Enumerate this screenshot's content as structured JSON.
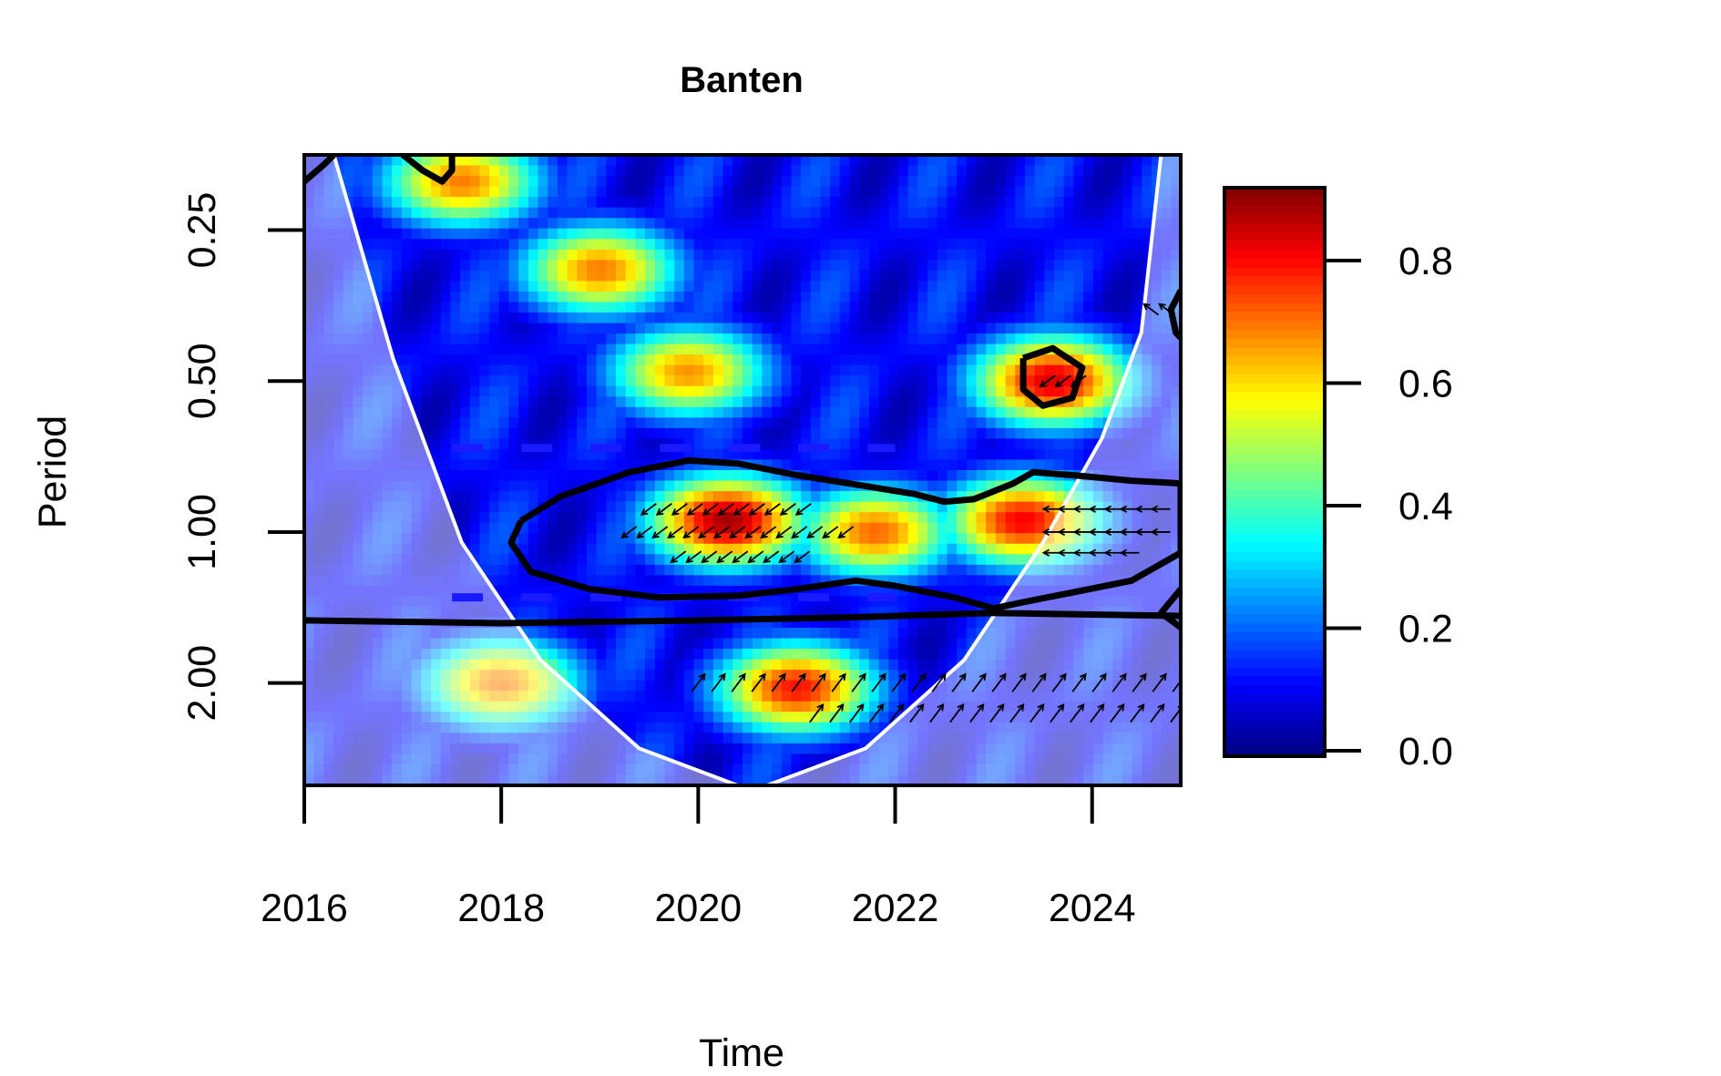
{
  "chart_data": {
    "type": "heatmap",
    "title": "Banten",
    "xlabel": "Time",
    "ylabel": "Period",
    "x_ticks": [
      "2016",
      "2018",
      "2020",
      "2022",
      "2024"
    ],
    "x_tick_values": [
      2016,
      2018,
      2020,
      2022,
      2024
    ],
    "xlim": [
      2016,
      2024.9
    ],
    "y_ticks": [
      "0.25",
      "0.50",
      "1.00",
      "2.00"
    ],
    "y_tick_values": [
      0.25,
      0.5,
      1.0,
      2.0
    ],
    "y_scale": "log2",
    "y_reversed": true,
    "ylim": [
      0.177,
      3.2
    ],
    "colorbar": {
      "ticks": [
        "0.0",
        "0.2",
        "0.4",
        "0.6",
        "0.8"
      ],
      "tick_values": [
        0.0,
        0.2,
        0.4,
        0.6,
        0.8
      ],
      "range": [
        0,
        0.93
      ],
      "palette": [
        "#00007F",
        "#0000FF",
        "#007FFF",
        "#00FFFF",
        "#7FFF7F",
        "#FFFF00",
        "#FF7F00",
        "#FF0000",
        "#7F0000"
      ]
    },
    "cone_of_influence": {
      "color": "#ffffff",
      "points": [
        [
          2016.3,
          0.177
        ],
        [
          2016.9,
          0.45
        ],
        [
          2017.6,
          1.05
        ],
        [
          2018.4,
          1.8
        ],
        [
          2019.4,
          2.7
        ],
        [
          2020.4,
          3.2
        ],
        [
          2020.7,
          3.2
        ],
        [
          2021.7,
          2.7
        ],
        [
          2022.7,
          1.8
        ],
        [
          2023.5,
          1.05
        ],
        [
          2024.1,
          0.65
        ],
        [
          2024.5,
          0.4
        ],
        [
          2024.7,
          0.177
        ]
      ]
    },
    "period_band_lines": {
      "color": "#1a1aff",
      "style": "dashed",
      "periods": [
        0.68,
        1.35
      ],
      "x_range": [
        2017.5,
        2022.0
      ]
    },
    "significance_contours": [
      {
        "label": "main-1yr",
        "points": [
          [
            2018.2,
            0.95
          ],
          [
            2018.6,
            0.85
          ],
          [
            2019.3,
            0.76
          ],
          [
            2019.9,
            0.72
          ],
          [
            2020.4,
            0.73
          ],
          [
            2021.0,
            0.77
          ],
          [
            2021.7,
            0.81
          ],
          [
            2022.2,
            0.84
          ],
          [
            2022.5,
            0.87
          ],
          [
            2022.8,
            0.86
          ],
          [
            2023.2,
            0.8
          ],
          [
            2023.4,
            0.76
          ],
          [
            2023.8,
            0.77
          ],
          [
            2024.4,
            0.79
          ],
          [
            2024.9,
            0.8
          ],
          [
            2024.9,
            1.1
          ],
          [
            2024.4,
            1.25
          ],
          [
            2023.8,
            1.32
          ],
          [
            2023.3,
            1.38
          ],
          [
            2023.0,
            1.42
          ],
          [
            2022.6,
            1.35
          ],
          [
            2022.0,
            1.28
          ],
          [
            2021.6,
            1.25
          ],
          [
            2021.0,
            1.3
          ],
          [
            2020.4,
            1.34
          ],
          [
            2019.6,
            1.35
          ],
          [
            2018.9,
            1.3
          ],
          [
            2018.3,
            1.2
          ],
          [
            2018.1,
            1.05
          ],
          [
            2018.2,
            0.95
          ]
        ]
      },
      {
        "label": "semiannual-2023",
        "points": [
          [
            2023.3,
            0.45
          ],
          [
            2023.6,
            0.43
          ],
          [
            2023.9,
            0.47
          ],
          [
            2023.8,
            0.54
          ],
          [
            2023.5,
            0.56
          ],
          [
            2023.3,
            0.52
          ],
          [
            2023.3,
            0.45
          ]
        ]
      },
      {
        "label": "1.5yr-band",
        "points": [
          [
            2016.0,
            1.5
          ],
          [
            2018.0,
            1.52
          ],
          [
            2020.0,
            1.5
          ],
          [
            2021.5,
            1.48
          ],
          [
            2023.0,
            1.45
          ],
          [
            2024.9,
            1.47
          ]
        ]
      },
      {
        "label": "top-left",
        "points": [
          [
            2016.0,
            0.2
          ],
          [
            2016.2,
            0.185
          ],
          [
            2016.3,
            0.177
          ]
        ]
      },
      {
        "label": "top-2017",
        "points": [
          [
            2017.0,
            0.177
          ],
          [
            2017.2,
            0.19
          ],
          [
            2017.4,
            0.2
          ],
          [
            2017.5,
            0.19
          ],
          [
            2017.5,
            0.177
          ]
        ]
      },
      {
        "label": "right-edge",
        "points": [
          [
            2024.9,
            0.33
          ],
          [
            2024.8,
            0.36
          ],
          [
            2024.85,
            0.4
          ],
          [
            2024.9,
            0.41
          ]
        ]
      },
      {
        "label": "right-lower",
        "points": [
          [
            2024.9,
            1.3
          ],
          [
            2024.7,
            1.45
          ],
          [
            2024.9,
            1.55
          ]
        ]
      }
    ],
    "phase_arrows": [
      {
        "region": "2019.5-2021.2 at ~0.9",
        "direction": "left-down",
        "x_range": [
          2019.5,
          2021.2
        ],
        "period": 0.9
      },
      {
        "region": "2019.3-2021.6 at ~1.0",
        "direction": "left-down",
        "x_range": [
          2019.3,
          2021.6
        ],
        "period": 1.0
      },
      {
        "region": "2019.8-2021.1 at ~1.1",
        "direction": "left-down",
        "x_range": [
          2019.8,
          2021.1
        ],
        "period": 1.12
      },
      {
        "region": "2023.6-2024.8 at ~0.9",
        "direction": "left",
        "x_range": [
          2023.6,
          2024.8
        ],
        "period": 0.9
      },
      {
        "region": "2023.6-2024.8 at ~1.0",
        "direction": "left",
        "x_range": [
          2023.6,
          2024.8
        ],
        "period": 1.0
      },
      {
        "region": "2023.6-2024.5 at ~1.1",
        "direction": "left",
        "x_range": [
          2023.6,
          2024.5
        ],
        "period": 1.1
      },
      {
        "region": "2020.0-2024.9 at ~2.0",
        "direction": "right-up",
        "x_range": [
          2020.0,
          2024.9
        ],
        "period": 2.0
      },
      {
        "region": "2021.2-2024.9 at ~2.3",
        "direction": "right-up",
        "x_range": [
          2021.2,
          2024.9
        ],
        "period": 2.3
      },
      {
        "region": "2023.6-2023.9 at ~0.5",
        "direction": "left-down",
        "x_range": [
          2023.55,
          2023.9
        ],
        "period": 0.5
      },
      {
        "region": "2024.6-2024.8 at ~0.35",
        "direction": "left-up",
        "x_range": [
          2024.6,
          2024.8
        ],
        "period": 0.36
      }
    ],
    "power_hotspots": [
      {
        "x": 2020.3,
        "period": 0.95,
        "value": 0.9
      },
      {
        "x": 2021.8,
        "period": 1.0,
        "value": 0.72
      },
      {
        "x": 2023.3,
        "period": 0.95,
        "value": 0.82
      },
      {
        "x": 2023.6,
        "period": 0.5,
        "value": 0.85
      },
      {
        "x": 2021.0,
        "period": 2.05,
        "value": 0.8
      },
      {
        "x": 2018.0,
        "period": 2.0,
        "value": 0.7
      },
      {
        "x": 2019.9,
        "period": 0.48,
        "value": 0.68
      },
      {
        "x": 2019.0,
        "period": 0.3,
        "value": 0.7
      },
      {
        "x": 2017.6,
        "period": 0.2,
        "value": 0.7
      }
    ]
  }
}
